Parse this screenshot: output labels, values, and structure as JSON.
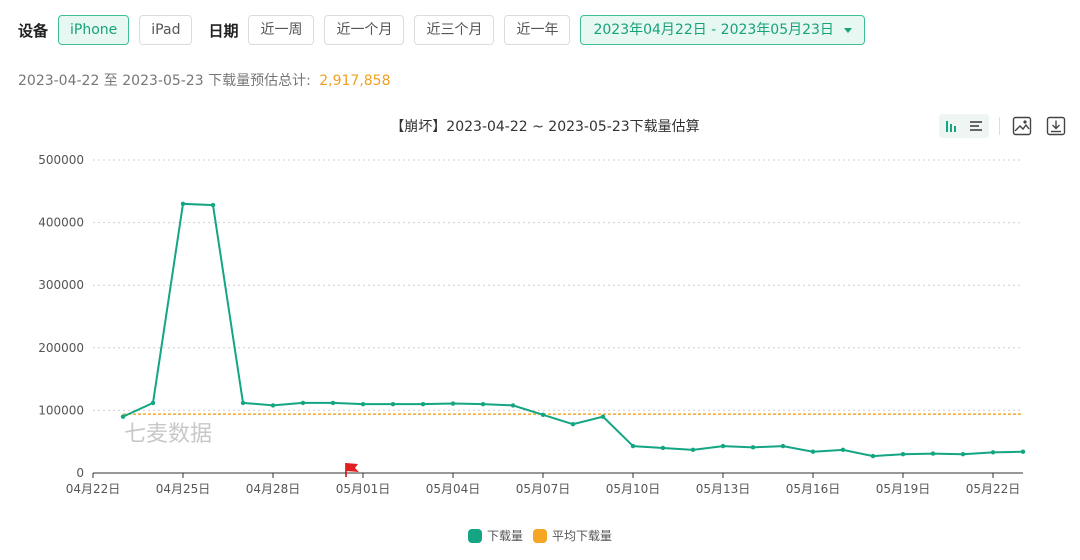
{
  "filters": {
    "device_label": "设备",
    "devices": [
      {
        "label": "iPhone",
        "active": true
      },
      {
        "label": "iPad",
        "active": false
      }
    ],
    "date_label": "日期",
    "ranges": [
      "近一周",
      "近一个月",
      "近三个月",
      "近一年"
    ],
    "date_range": "2023年04月22日 - 2023年05月23日"
  },
  "summary": {
    "text": "2023-04-22 至 2023-05-23 下载量预估总计:",
    "total": "2,917,858"
  },
  "colors": {
    "series": "#14a683",
    "average": "#f5a623"
  },
  "chart_data": {
    "type": "line",
    "title": "【崩坏】2023-04-22 ~ 2023-05-23下载量估算",
    "watermark": "七麦数据",
    "x": [
      "04月22日",
      "04月23日",
      "04月24日",
      "04月25日",
      "04月26日",
      "04月27日",
      "04月28日",
      "04月29日",
      "04月30日",
      "05月01日",
      "05月02日",
      "05月03日",
      "05月04日",
      "05月05日",
      "05月06日",
      "05月07日",
      "05月08日",
      "05月09日",
      "05月10日",
      "05月11日",
      "05月12日",
      "05月13日",
      "05月14日",
      "05月15日",
      "05月16日",
      "05月17日",
      "05月18日",
      "05月19日",
      "05月20日",
      "05月21日",
      "05月22日",
      "05月23日"
    ],
    "x_tick_labels": [
      "04月22日",
      "04月25日",
      "04月28日",
      "05月01日",
      "05月04日",
      "05月07日",
      "05月10日",
      "05月13日",
      "05月16日",
      "05月19日",
      "05月22日"
    ],
    "y_ticks": [
      "500000",
      "400000",
      "300000",
      "200000",
      "100000",
      "0"
    ],
    "ylim": [
      0,
      500000
    ],
    "series": [
      {
        "name": "下载量",
        "values": [
          null,
          90000,
          112000,
          430000,
          428000,
          112000,
          108000,
          112000,
          112000,
          110000,
          110000,
          110000,
          111000,
          110000,
          108000,
          93000,
          78000,
          90000,
          43000,
          40000,
          37000,
          43000,
          41000,
          43000,
          34000,
          37000,
          27000,
          30000,
          31000,
          30000,
          33000,
          34000
        ]
      }
    ],
    "average": {
      "name": "平均下载量",
      "value": 94060
    },
    "marker_date": "05月01日",
    "legend_position": "bottom",
    "grid": true
  }
}
